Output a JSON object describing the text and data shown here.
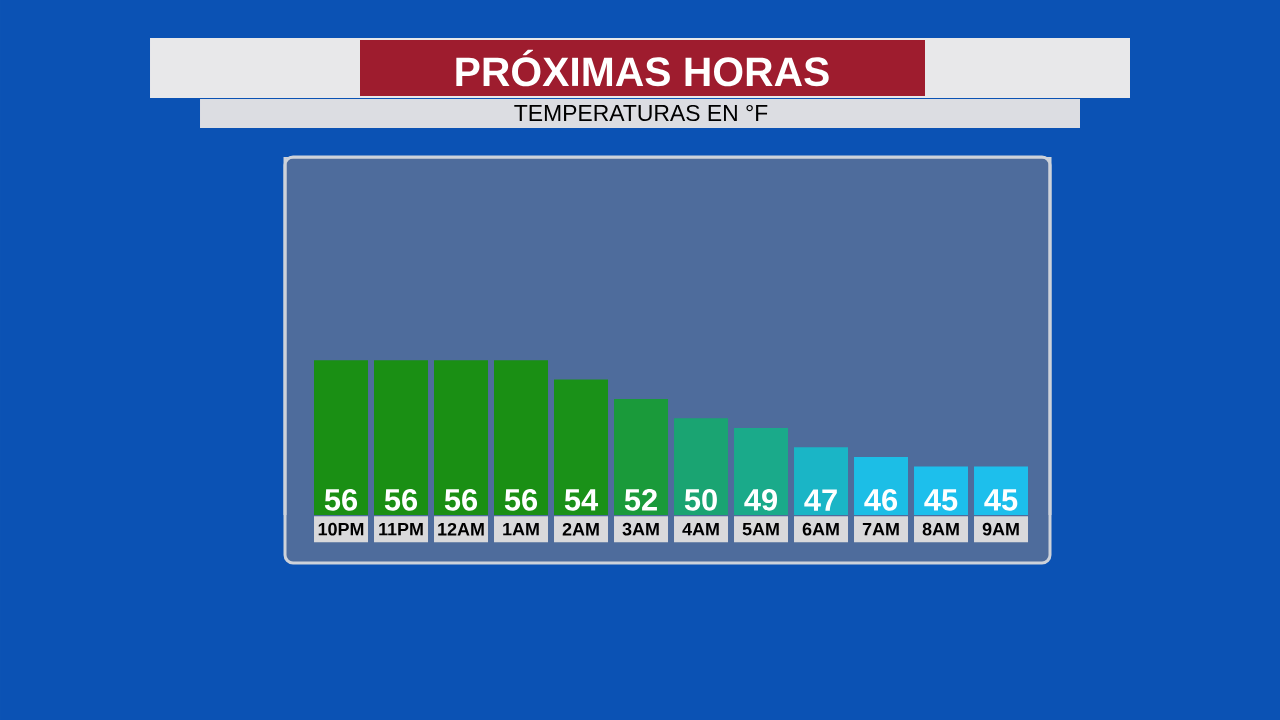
{
  "chart_data": {
    "type": "bar",
    "title": "PRÓXIMAS HORAS",
    "subtitle": "TEMPERATURAS EN °F",
    "categories": [
      "10PM",
      "11PM",
      "12AM",
      "1AM",
      "2AM",
      "3AM",
      "4AM",
      "5AM",
      "6AM",
      "7AM",
      "8AM",
      "9AM"
    ],
    "values": [
      56,
      56,
      56,
      56,
      54,
      52,
      50,
      49,
      47,
      46,
      45,
      45
    ],
    "colors": [
      "#1a8f14",
      "#1a8f14",
      "#1a8f14",
      "#1a8f14",
      "#1a9118",
      "#1a9a3a",
      "#1aa472",
      "#1aaa8a",
      "#1ab5c6",
      "#1cbee6",
      "#1dbfec",
      "#1dbfec"
    ],
    "ylim": [
      40,
      77
    ],
    "data_labels": true,
    "tick_labels": "x"
  }
}
